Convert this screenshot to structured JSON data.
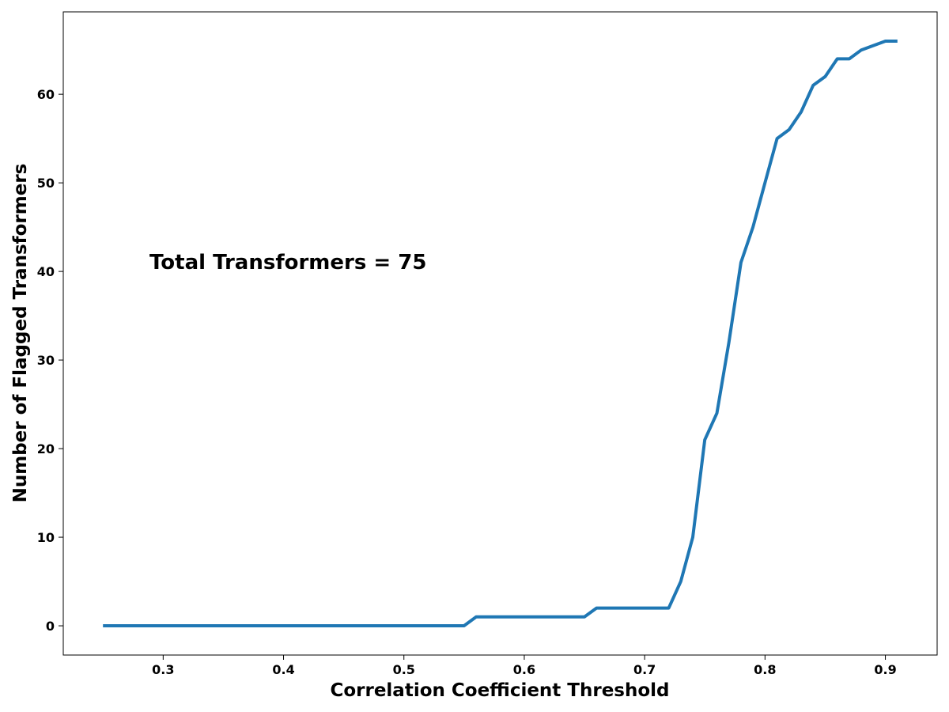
{
  "chart_data": {
    "type": "line",
    "title": "",
    "xlabel": "Correlation Coefficient Threshold",
    "ylabel": "Number of Flagged Transformers",
    "annotation": "Total Transformers = 75",
    "xlim": [
      0.217,
      0.943
    ],
    "ylim": [
      -3.3,
      69.3
    ],
    "x_ticks": [
      0.3,
      0.4,
      0.5,
      0.6,
      0.7,
      0.8,
      0.9
    ],
    "x_tick_labels": [
      "0.3",
      "0.4",
      "0.5",
      "0.6",
      "0.7",
      "0.8",
      "0.9"
    ],
    "y_ticks": [
      0,
      10,
      20,
      30,
      40,
      50,
      60
    ],
    "y_tick_labels": [
      "0",
      "10",
      "20",
      "30",
      "40",
      "50",
      "60"
    ],
    "grid": false,
    "line_color": "#1f77b4",
    "series": [
      {
        "x": [
          0.25,
          0.55,
          0.56,
          0.65,
          0.66,
          0.72,
          0.73,
          0.74,
          0.75,
          0.76,
          0.77,
          0.78,
          0.79,
          0.8,
          0.81,
          0.82,
          0.83,
          0.84,
          0.85,
          0.86,
          0.87,
          0.88,
          0.89,
          0.9,
          0.91
        ],
        "values": [
          0,
          0,
          1,
          1,
          2,
          2,
          5,
          10,
          21,
          24,
          32,
          41,
          45,
          50,
          55,
          56,
          58,
          61,
          62,
          64,
          64,
          65,
          65.5,
          66,
          66
        ]
      }
    ]
  }
}
